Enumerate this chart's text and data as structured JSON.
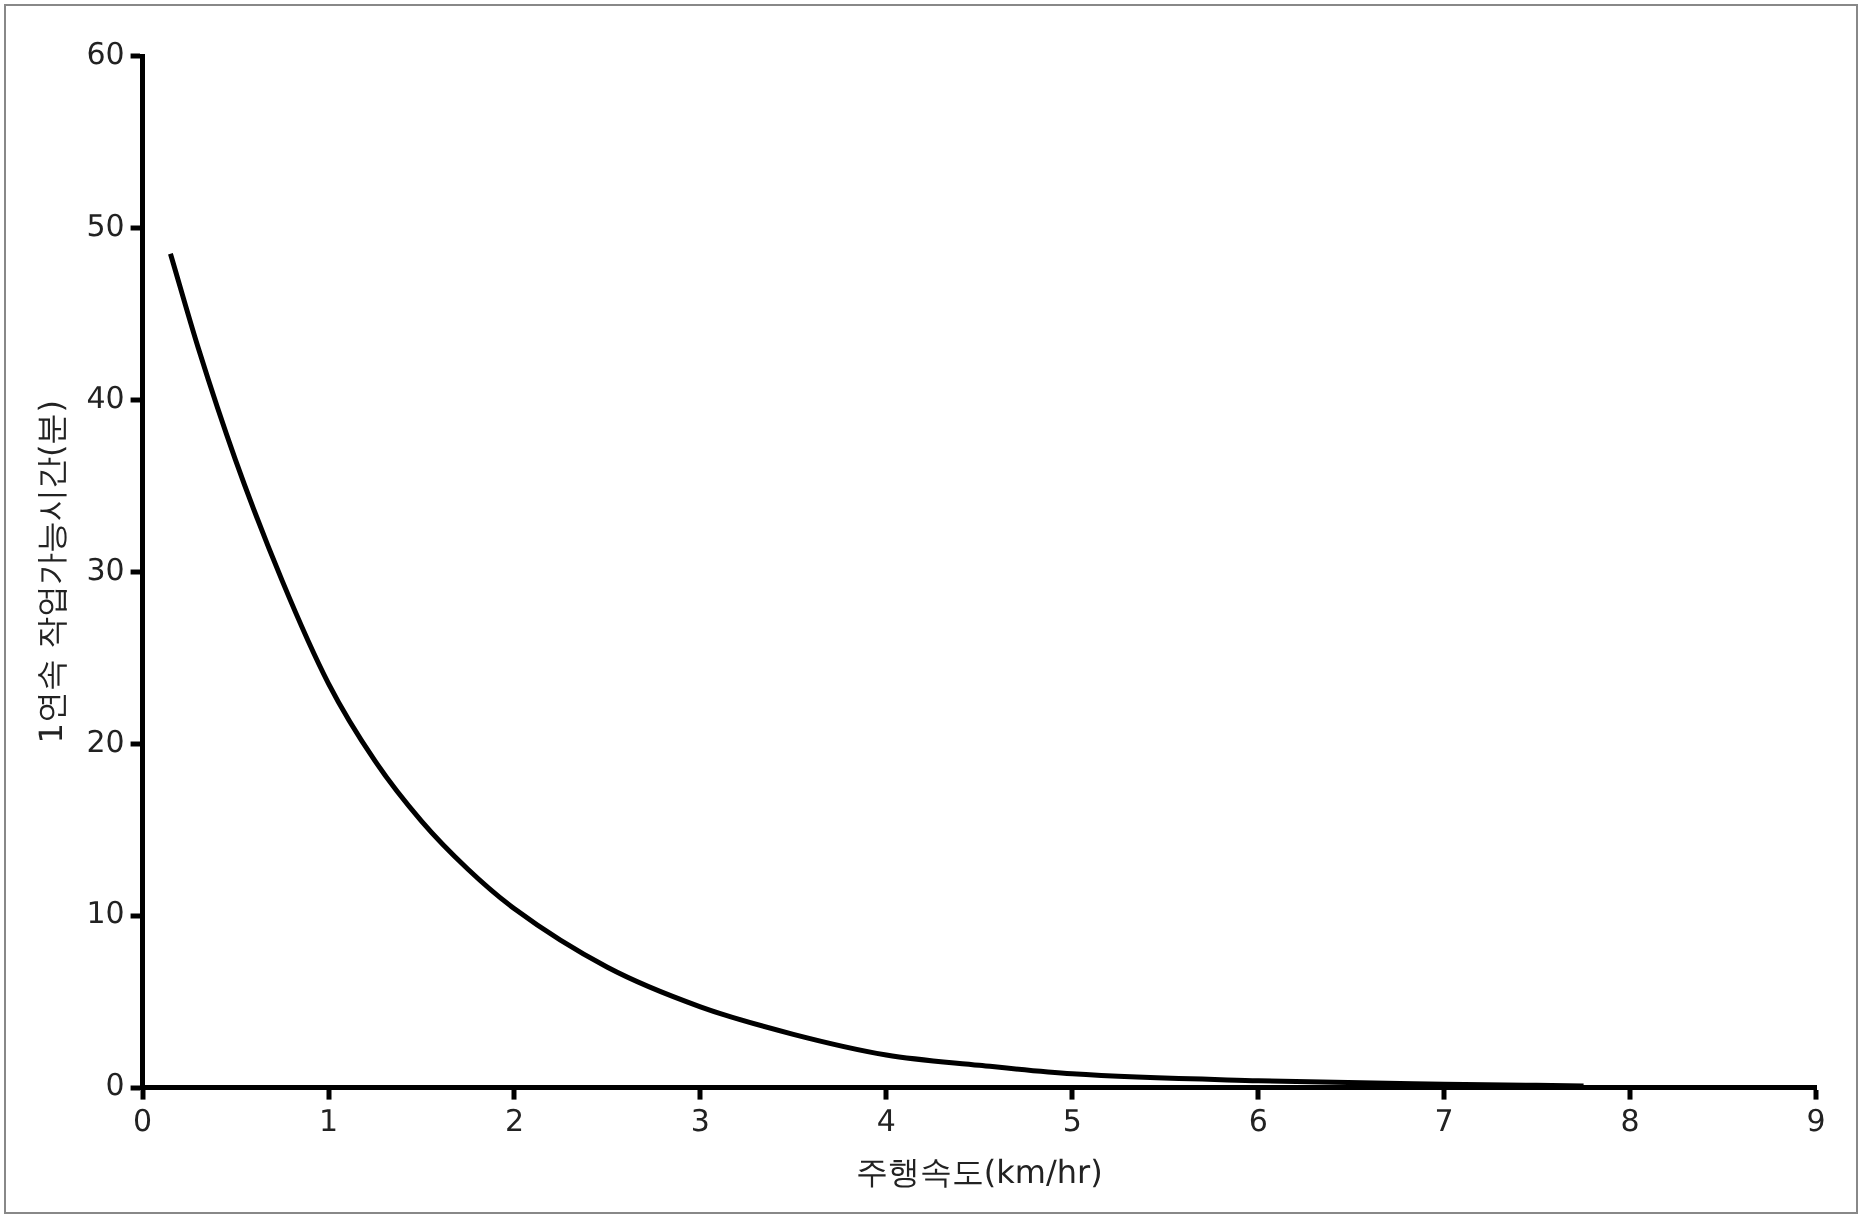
{
  "chart_data": {
    "type": "line",
    "xlabel": "주행속도(km/hr)",
    "ylabel": "1연속 작업가능시간(분)",
    "x": [
      0.15,
      0.3,
      0.5,
      0.75,
      1,
      1.25,
      1.5,
      1.75,
      2,
      2.5,
      3,
      3.5,
      4,
      4.5,
      5,
      6,
      7,
      7.75
    ],
    "series": [
      {
        "color": "#000000",
        "values": [
          48.5,
          43,
          36.5,
          29.5,
          23.5,
          19,
          15.5,
          12.7,
          10.4,
          7,
          4.7,
          3.1,
          1.9,
          1.3,
          0.8,
          0.4,
          0.2,
          0.1
        ]
      }
    ],
    "xlim": [
      0,
      9
    ],
    "xticks": [
      0,
      1,
      2,
      3,
      4,
      5,
      6,
      7,
      8,
      9
    ],
    "ylim": [
      0,
      60
    ],
    "yticks": [
      0,
      10,
      20,
      30,
      40,
      50,
      60
    ],
    "grid": false,
    "legend": false,
    "marker": "none",
    "line_style": "solid"
  }
}
